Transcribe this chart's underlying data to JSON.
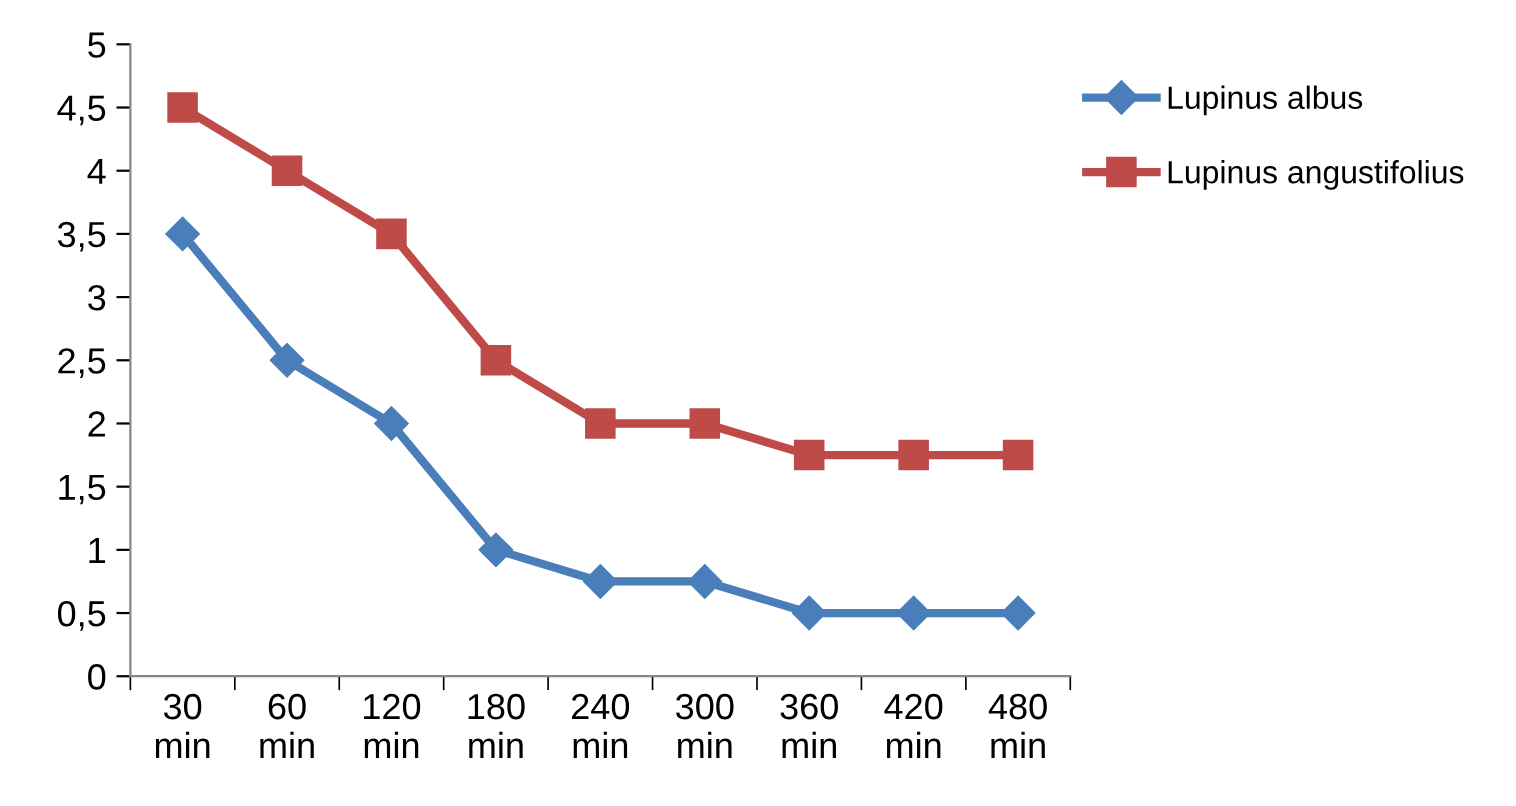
{
  "chart_data": {
    "type": "line",
    "categories": [
      "30\nmin",
      "60\nmin",
      "120\nmin",
      "180\nmin",
      "240\nmin",
      "300\nmin",
      "360\nmin",
      "420\nmin",
      "480\nmin"
    ],
    "series": [
      {
        "name": "Lupinus albus",
        "color": "#4a7ebb",
        "marker": "diamond",
        "values": [
          3.5,
          2.5,
          2,
          1,
          0.75,
          0.75,
          0.5,
          0.5,
          0.5
        ]
      },
      {
        "name": "Lupinus angustifolius",
        "color": "#be4b48",
        "marker": "square",
        "values": [
          4.5,
          4,
          3.5,
          2.5,
          2,
          2,
          1.75,
          1.75,
          1.75
        ]
      }
    ],
    "ylim": [
      0,
      5
    ],
    "yticks": [
      0,
      {
        "value": 0.5,
        "label": "0,5"
      },
      1,
      {
        "value": 1.5,
        "label": "1,5"
      },
      2,
      {
        "value": 2.5,
        "label": "2,5"
      },
      3,
      {
        "value": 3.5,
        "label": "3,5"
      },
      4,
      {
        "value": 4.5,
        "label": "4,5"
      },
      5
    ],
    "grid": false,
    "legend": "right",
    "line_style": "solid"
  }
}
